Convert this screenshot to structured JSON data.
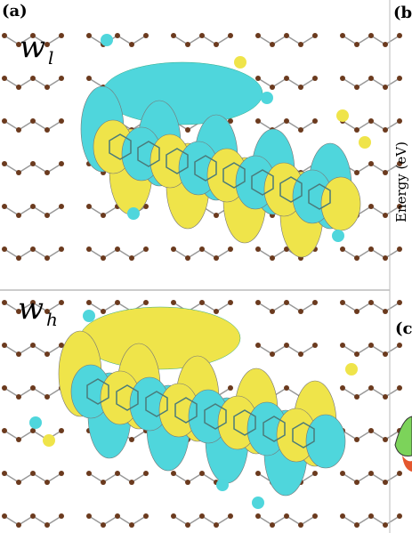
{
  "panels": {
    "a": "(a)",
    "b": "(b",
    "c": "(c"
  },
  "axis_label": "Energy (eV)",
  "orbitals": [
    {
      "symbol": "w",
      "subscript": "l"
    },
    {
      "symbol": "w",
      "subscript": "h"
    }
  ]
}
